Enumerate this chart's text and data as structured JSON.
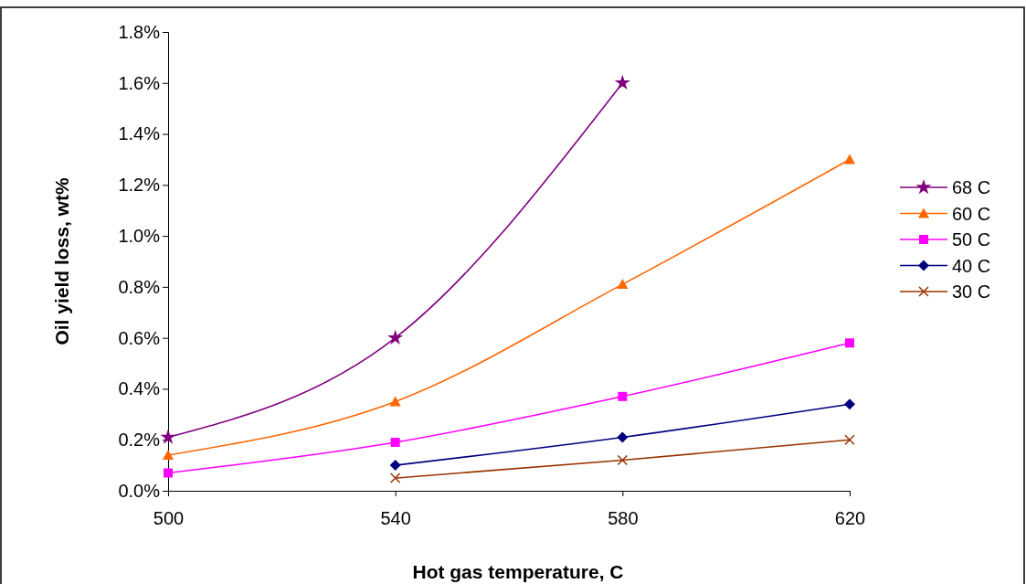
{
  "chart_data": {
    "type": "line",
    "xlabel": "Hot gas temperature, C",
    "ylabel": "Oil yield loss, wt%",
    "xlim": [
      500,
      620
    ],
    "xticks": [
      500,
      540,
      580,
      620
    ],
    "ylim": [
      0,
      1.8
    ],
    "yticks": [
      {
        "value": 0,
        "label": "0.0%"
      },
      {
        "value": 0.2,
        "label": "0.2%"
      },
      {
        "value": 0.4,
        "label": "0.4%"
      },
      {
        "value": 0.6,
        "label": "0.6%"
      },
      {
        "value": 0.8,
        "label": "0.8%"
      },
      {
        "value": 1.0,
        "label": "1.0%"
      },
      {
        "value": 1.2,
        "label": "1.2%"
      },
      {
        "value": 1.4,
        "label": "1.4%"
      },
      {
        "value": 1.6,
        "label": "1.6%"
      },
      {
        "value": 1.8,
        "label": "1.8%"
      }
    ],
    "grid": false,
    "legend": "right",
    "series": [
      {
        "name": "68 C",
        "color": "#800080",
        "marker": "star",
        "x": [
          500,
          540,
          580
        ],
        "values": [
          0.21,
          0.6,
          1.6
        ]
      },
      {
        "name": "60 C",
        "color": "#ff6600",
        "marker": "triangle",
        "x": [
          500,
          540,
          580,
          620
        ],
        "values": [
          0.14,
          0.35,
          0.81,
          1.3
        ]
      },
      {
        "name": "50 C",
        "color": "#ff00ff",
        "marker": "square",
        "x": [
          500,
          540,
          580,
          620
        ],
        "values": [
          0.07,
          0.19,
          0.37,
          0.58
        ]
      },
      {
        "name": "40 C",
        "color": "#000080",
        "marker": "diamond",
        "x": [
          540,
          580,
          620
        ],
        "values": [
          0.1,
          0.21,
          0.34
        ]
      },
      {
        "name": "30 C",
        "color": "#993300",
        "marker": "cross",
        "x": [
          540,
          580,
          620
        ],
        "values": [
          0.05,
          0.12,
          0.2
        ]
      }
    ]
  }
}
